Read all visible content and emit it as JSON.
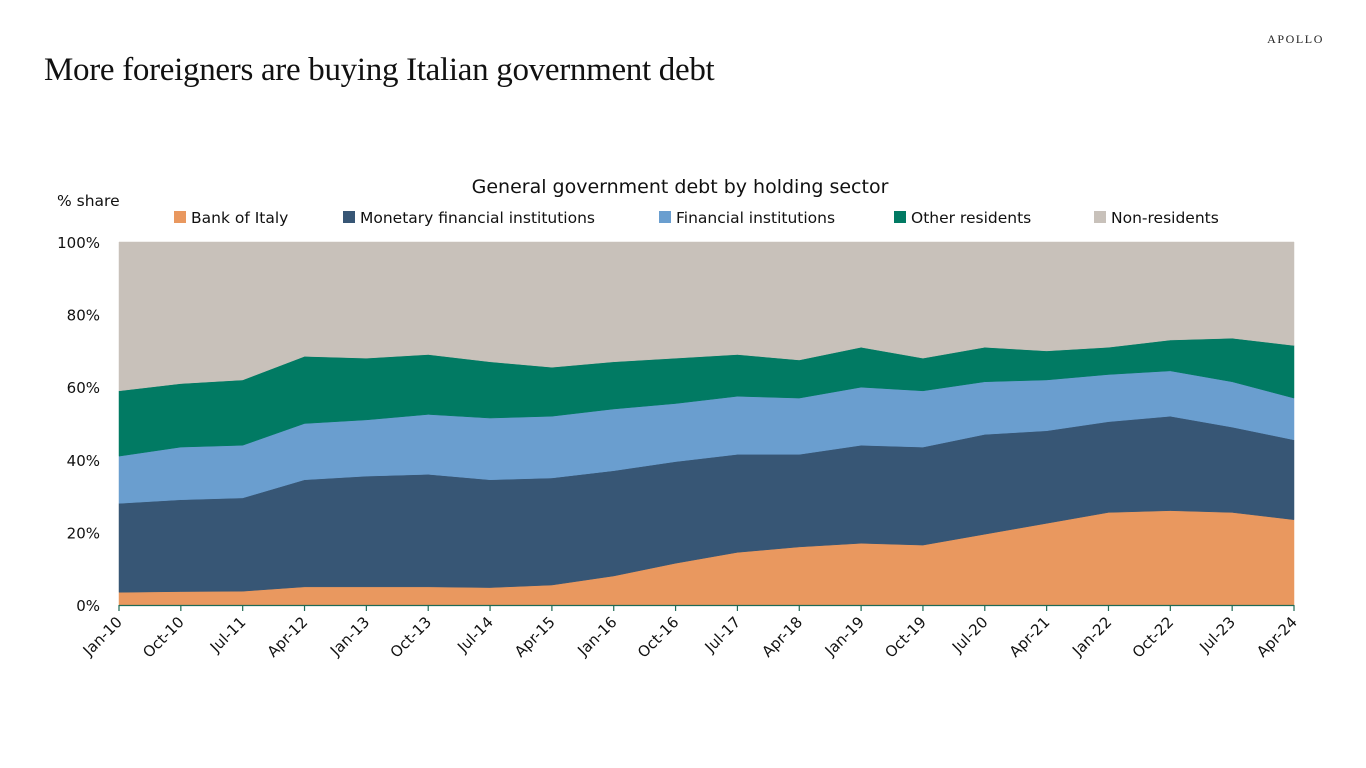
{
  "header": {
    "brand": "APOLLO",
    "title": "More foreigners are buying Italian government debt"
  },
  "chart_data": {
    "type": "area",
    "stacked": true,
    "title": "General government debt by holding sector",
    "ylabel": "% share",
    "xlabel": "",
    "ylim": [
      0,
      100
    ],
    "yticks": [
      0,
      20,
      40,
      60,
      80,
      100
    ],
    "ytick_labels": [
      "0%",
      "20%",
      "40%",
      "60%",
      "80%",
      "100%"
    ],
    "legend_position": "top",
    "grid": false,
    "x": [
      "Jan-10",
      "Oct-10",
      "Jul-11",
      "Apr-12",
      "Jan-13",
      "Oct-13",
      "Jul-14",
      "Apr-15",
      "Jan-16",
      "Oct-16",
      "Jul-17",
      "Apr-18",
      "Jan-19",
      "Oct-19",
      "Jul-20",
      "Apr-21",
      "Jan-22",
      "Oct-22",
      "Jul-23",
      "Apr-24"
    ],
    "series": [
      {
        "name": "Bank of Italy",
        "color": "#E9985F",
        "values": [
          3.5,
          3.7,
          3.8,
          5.0,
          5.0,
          5.0,
          4.8,
          5.5,
          8.0,
          11.5,
          14.5,
          16.0,
          17.0,
          16.5,
          19.5,
          22.5,
          25.5,
          26.0,
          25.5,
          23.5
        ]
      },
      {
        "name": "Monetary financial institutions",
        "color": "#375675",
        "values": [
          24.5,
          25.3,
          25.7,
          29.5,
          30.5,
          31.0,
          29.7,
          29.5,
          29.0,
          28.0,
          27.0,
          25.5,
          27.0,
          27.0,
          27.5,
          25.5,
          25.0,
          26.0,
          23.5,
          22.0
        ]
      },
      {
        "name": "Financial institutions",
        "color": "#6A9ECF",
        "values": [
          13.0,
          14.5,
          14.5,
          15.5,
          15.5,
          16.5,
          17.0,
          17.0,
          17.0,
          16.0,
          16.0,
          15.5,
          16.0,
          15.5,
          14.5,
          14.0,
          13.0,
          12.5,
          12.5,
          11.5
        ]
      },
      {
        "name": "Other residents",
        "color": "#017A63",
        "values": [
          18.0,
          17.5,
          18.0,
          18.5,
          17.0,
          16.5,
          15.5,
          13.5,
          13.0,
          12.5,
          11.5,
          10.5,
          11.0,
          9.0,
          9.5,
          8.0,
          7.5,
          8.5,
          12.0,
          14.5
        ]
      },
      {
        "name": "Non-residents",
        "color": "#C8C1BA",
        "values": [
          41.0,
          39.0,
          38.0,
          31.5,
          32.0,
          31.0,
          33.0,
          34.5,
          33.0,
          32.0,
          31.0,
          32.5,
          29.0,
          32.0,
          29.0,
          30.0,
          29.0,
          27.0,
          26.5,
          28.5
        ]
      }
    ]
  }
}
